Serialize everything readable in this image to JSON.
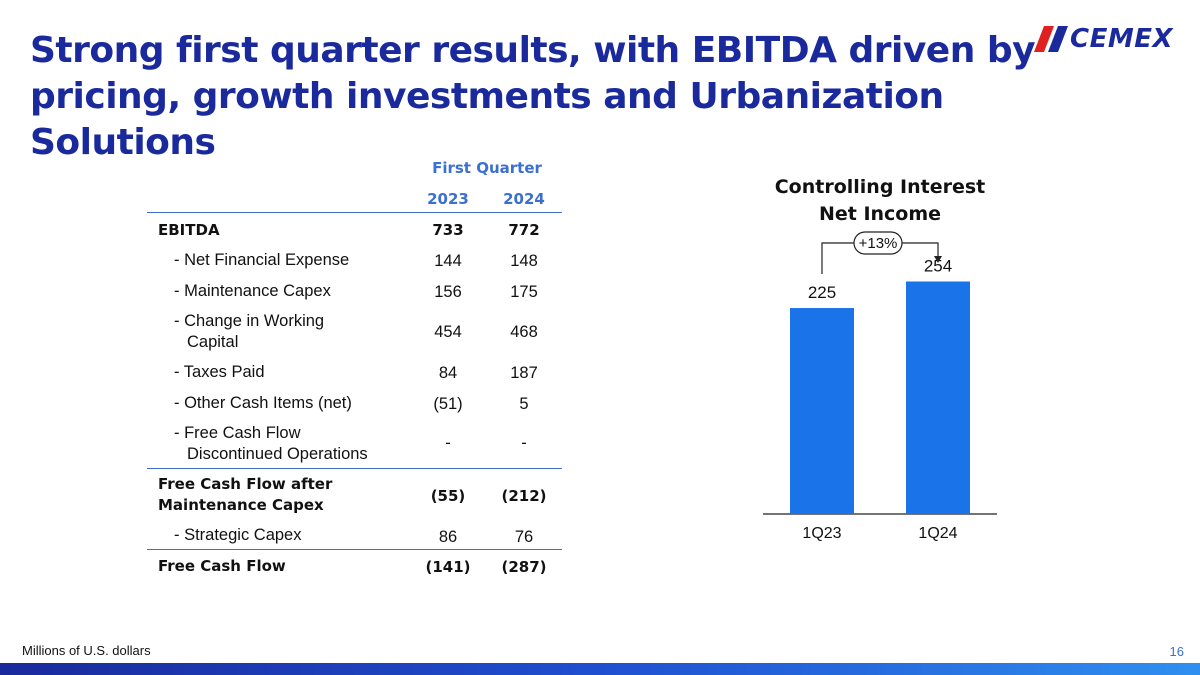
{
  "title": "Strong first quarter results, with EBITDA driven by pricing, growth investments and Urbanization Solutions",
  "logo_text": "CEMEX",
  "table": {
    "group_header": "First Quarter",
    "columns": [
      "2023",
      "2024"
    ],
    "rows": [
      {
        "label": "EBITDA",
        "values": [
          "733",
          "772"
        ]
      },
      {
        "label": "- Net Financial Expense",
        "values": [
          "144",
          "148"
        ]
      },
      {
        "label": "- Maintenance Capex",
        "values": [
          "156",
          "175"
        ]
      },
      {
        "label": "- Change in Working",
        "label2": "Capital",
        "values": [
          "454",
          "468"
        ]
      },
      {
        "label": "- Taxes Paid",
        "values": [
          "84",
          "187"
        ]
      },
      {
        "label": "- Other Cash Items (net)",
        "values": [
          "(51)",
          "5"
        ]
      },
      {
        "label": "- Free Cash Flow",
        "label2": "Discontinued Operations",
        "values": [
          "-",
          "-"
        ]
      },
      {
        "label": "Free Cash Flow after",
        "label2": "Maintenance Capex",
        "values": [
          "(55)",
          "(212)"
        ]
      },
      {
        "label": "- Strategic Capex",
        "values": [
          "86",
          "76"
        ]
      },
      {
        "label": "Free Cash Flow",
        "values": [
          "(141)",
          "(287)"
        ]
      }
    ]
  },
  "chart_data": {
    "type": "bar",
    "title": "Controlling Interest Net Income",
    "title_line1": "Controlling Interest",
    "title_line2": "Net Income",
    "categories": [
      "1Q23",
      "1Q24"
    ],
    "values": [
      225,
      254
    ],
    "data_labels": [
      "225",
      "254"
    ],
    "annotation": "+13%",
    "ylim": [
      0,
      260
    ],
    "xlabel": "",
    "ylabel": "",
    "bar_color": "#1a73e8"
  },
  "footer": {
    "note": "Millions of U.S. dollars",
    "page_number": "16"
  },
  "colors": {
    "title": "#1a2a9c",
    "accent": "#3b6fd0",
    "logo_red": "#e02020"
  }
}
